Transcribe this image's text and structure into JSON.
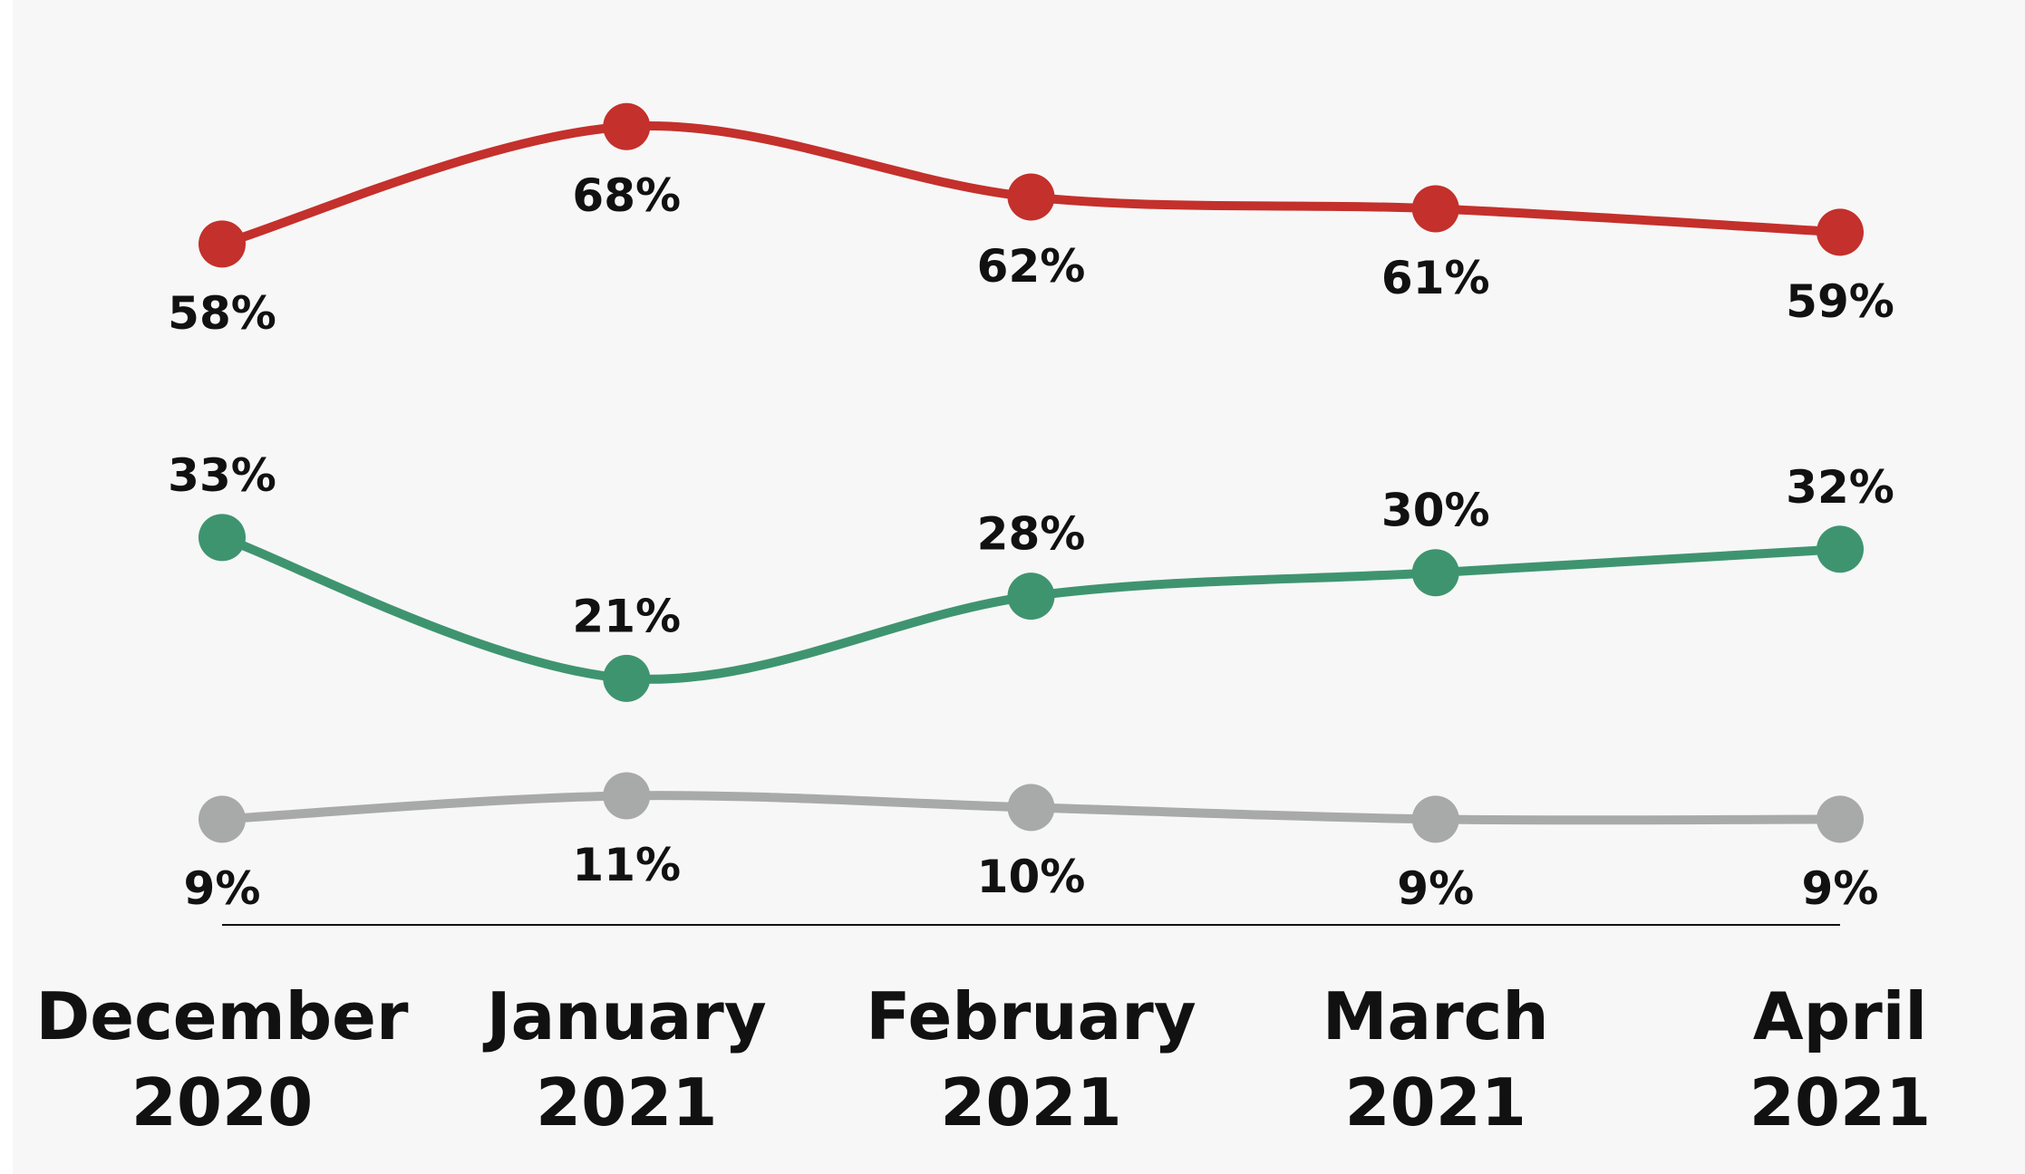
{
  "chart_data": {
    "type": "line",
    "categories": [
      "December 2020",
      "January 2021",
      "February 2021",
      "March 2021",
      "April 2021"
    ],
    "series": [
      {
        "color": "#c4302b",
        "values": [
          58,
          68,
          62,
          61,
          59
        ],
        "value_labels": [
          "58%",
          "68%",
          "62%",
          "61%",
          "59%"
        ],
        "label_position": "below"
      },
      {
        "color": "#3f9470",
        "values": [
          33,
          21,
          28,
          30,
          32
        ],
        "value_labels": [
          "33%",
          "21%",
          "28%",
          "30%",
          "32%"
        ],
        "label_position": "above"
      },
      {
        "color": "#a8aaa9",
        "values": [
          9,
          11,
          10,
          9,
          9
        ],
        "value_labels": [
          "9%",
          "11%",
          "10%",
          "9%",
          "9%"
        ],
        "label_position": "below"
      }
    ],
    "ylim": [
      0,
      75
    ]
  }
}
